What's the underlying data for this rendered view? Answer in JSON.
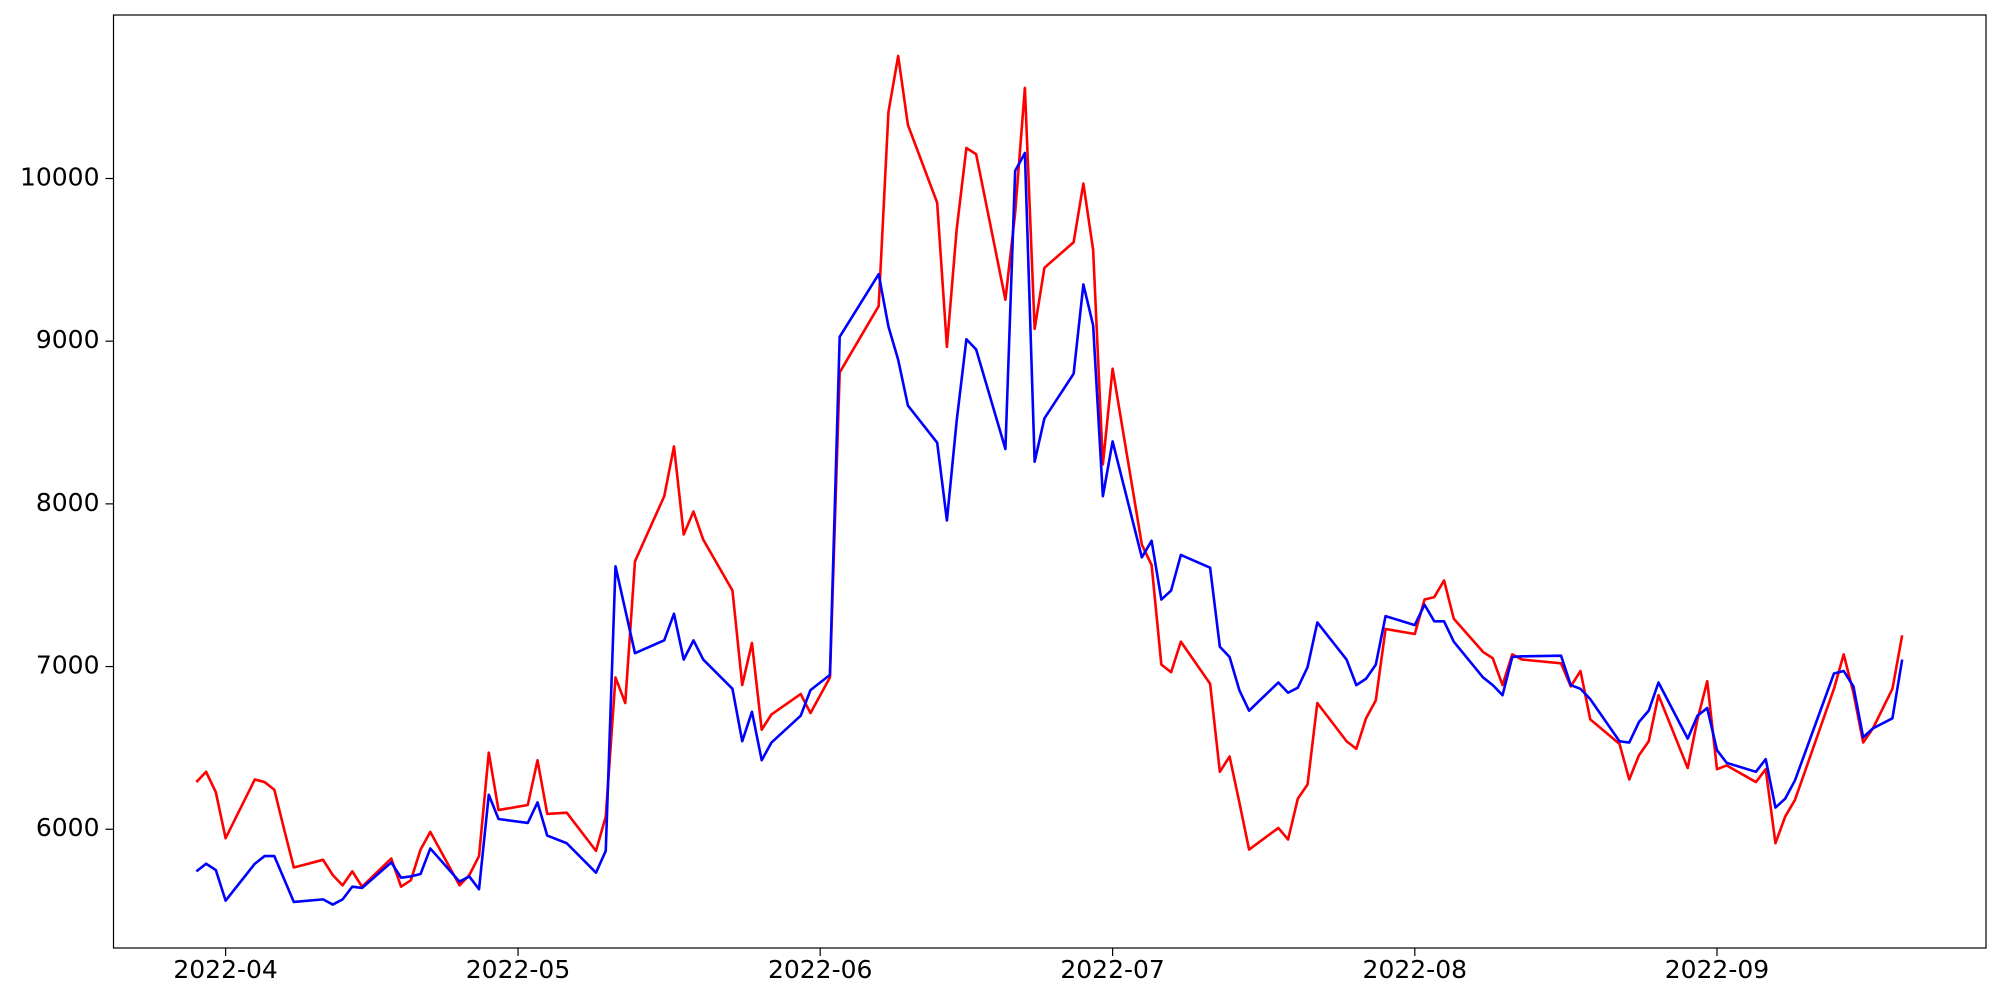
{
  "chart_data": {
    "type": "line",
    "x": [
      -3,
      -2,
      -1,
      0,
      3,
      4,
      5,
      6,
      7,
      10,
      11,
      12,
      13,
      14,
      17,
      18,
      19,
      20,
      21,
      24,
      25,
      26,
      27,
      28,
      31,
      32,
      33,
      35,
      38,
      39,
      40,
      41,
      42,
      45,
      46,
      47,
      48,
      49,
      52,
      53,
      54,
      55,
      56,
      59,
      60,
      62,
      63,
      67,
      68,
      69,
      70,
      73,
      74,
      75,
      76,
      77,
      80,
      81,
      82,
      83,
      84,
      87,
      88,
      89,
      90,
      91,
      94,
      95,
      96,
      97,
      98,
      101,
      102,
      103,
      104,
      105,
      108,
      109,
      110,
      111,
      112,
      115,
      116,
      117,
      118,
      119,
      122,
      123,
      124,
      125,
      126,
      129,
      130,
      131,
      132,
      133,
      137,
      138,
      139,
      140,
      143,
      144,
      145,
      146,
      147,
      150,
      151,
      152,
      153,
      154,
      157,
      158,
      159,
      160,
      161,
      165,
      166,
      167,
      168,
      169,
      171,
      172
    ],
    "series": [
      {
        "color": "#ff0000",
        "values": [
          6290,
          6353,
          6227,
          5945,
          6306,
          6290,
          6243,
          6000,
          5765,
          5812,
          5718,
          5655,
          5741,
          5647,
          5820,
          5647,
          5686,
          5875,
          5984,
          5655,
          5718,
          5835,
          6471,
          6118,
          6149,
          6424,
          6094,
          6102,
          5867,
          6078,
          6933,
          6776,
          7647,
          8047,
          8353,
          7812,
          7953,
          7780,
          7467,
          6886,
          7145,
          6612,
          6706,
          6831,
          6714,
          6933,
          8808,
          9216,
          10408,
          10753,
          10329,
          9851,
          8965,
          9686,
          10188,
          10149,
          9255,
          9788,
          10557,
          9075,
          9451,
          9608,
          9969,
          9561,
          8243,
          8831,
          7749,
          7624,
          7012,
          6965,
          7153,
          6894,
          6353,
          6447,
          6165,
          5875,
          6008,
          5937,
          6188,
          6275,
          6776,
          6541,
          6494,
          6682,
          6792,
          7231,
          7200,
          7412,
          7427,
          7529,
          7294,
          7090,
          7051,
          6886,
          7075,
          7043,
          7020,
          6878,
          6973,
          6675,
          6525,
          6306,
          6455,
          6541,
          6824,
          6376,
          6675,
          6910,
          6369,
          6392,
          6290,
          6369,
          5914,
          6078,
          6180,
          6863,
          7075,
          6839,
          6533,
          6620,
          6863,
          7192
        ]
      },
      {
        "color": "#0000ff",
        "values": [
          5741,
          5788,
          5749,
          5561,
          5788,
          5835,
          5835,
          5694,
          5553,
          5569,
          5537,
          5569,
          5647,
          5639,
          5796,
          5702,
          5710,
          5725,
          5882,
          5678,
          5710,
          5631,
          6212,
          6063,
          6039,
          6165,
          5961,
          5914,
          5733,
          5867,
          7616,
          7349,
          7082,
          7161,
          7325,
          7043,
          7161,
          7043,
          6863,
          6541,
          6722,
          6424,
          6533,
          6698,
          6855,
          6949,
          9027,
          9412,
          9090,
          8886,
          8604,
          8376,
          7898,
          8510,
          9012,
          8949,
          8337,
          10047,
          10157,
          8259,
          8525,
          8800,
          9349,
          9098,
          8047,
          8384,
          7671,
          7773,
          7412,
          7467,
          7686,
          7608,
          7122,
          7059,
          6855,
          6729,
          6902,
          6839,
          6870,
          6996,
          7271,
          7043,
          6886,
          6925,
          7012,
          7310,
          7255,
          7380,
          7278,
          7278,
          7153,
          6933,
          6886,
          6824,
          7059,
          7063,
          7067,
          6886,
          6863,
          6800,
          6541,
          6533,
          6659,
          6729,
          6902,
          6557,
          6698,
          6745,
          6486,
          6408,
          6353,
          6431,
          6133,
          6188,
          6300,
          6957,
          6973,
          6878,
          6565,
          6620,
          6682,
          7043
        ]
      }
    ],
    "xlim": [
      -11.5,
      180.6
    ],
    "xticks": [
      {
        "value": 0,
        "label": "2022-04"
      },
      {
        "value": 30,
        "label": "2022-05"
      },
      {
        "value": 61,
        "label": "2022-06"
      },
      {
        "value": 91,
        "label": "2022-07"
      },
      {
        "value": 122,
        "label": "2022-08"
      },
      {
        "value": 153,
        "label": "2022-09"
      }
    ],
    "ylim": [
      5270,
      11005
    ],
    "yticks": [
      6000,
      7000,
      8000,
      9000,
      10000
    ],
    "grid": false
  }
}
